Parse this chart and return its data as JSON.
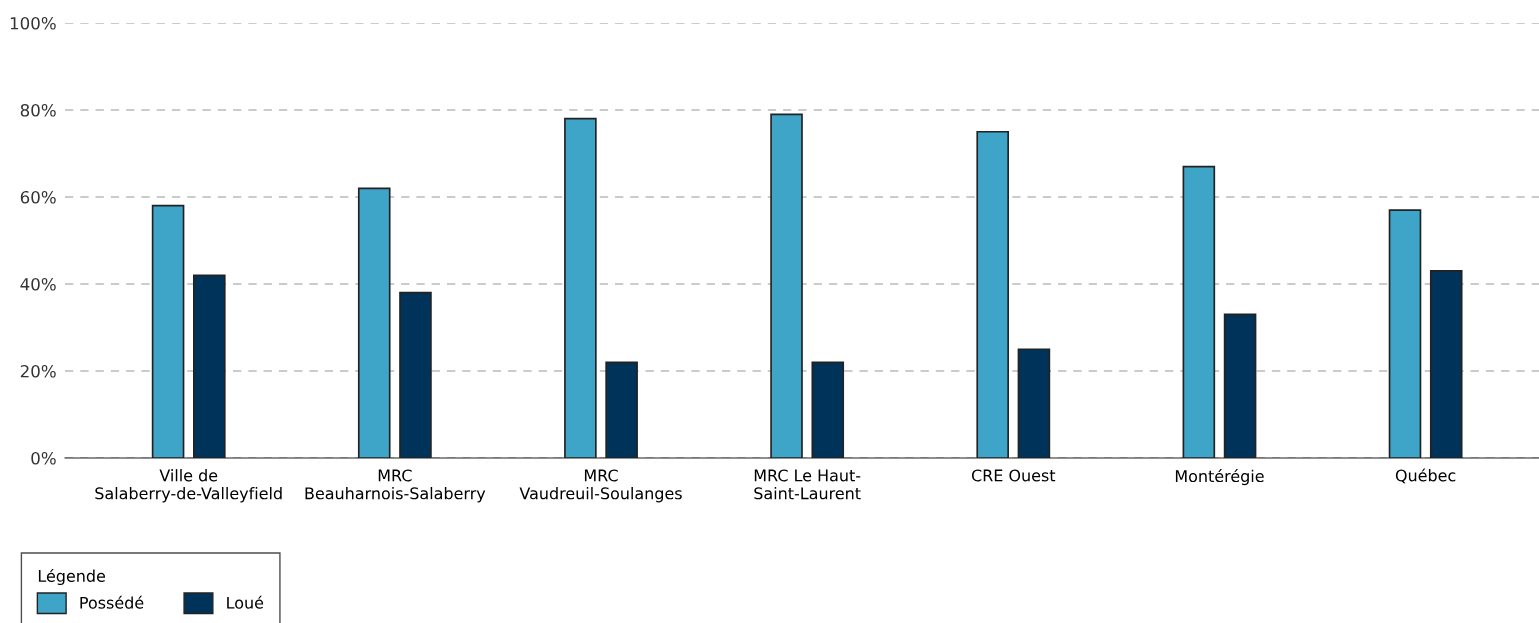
{
  "chart_data": {
    "type": "bar",
    "categories": [
      "Ville de\nSalaberry-de-Valleyfield",
      "MRC\nBeauharnois-Salaberry",
      "MRC\nVaudreuil-Soulanges",
      "MRC Le Haut-\nSaint-Laurent",
      "CRE Ouest",
      "Montérégie",
      "Québec"
    ],
    "series": [
      {
        "name": "Possédé",
        "color": "#3fa5c8",
        "values": [
          58,
          62,
          78,
          79,
          75,
          67,
          57
        ]
      },
      {
        "name": "Loué",
        "color": "#00335a",
        "values": [
          42,
          38,
          22,
          22,
          25,
          33,
          43
        ]
      }
    ],
    "ylim": [
      0,
      100
    ],
    "yticks": [
      {
        "value": 0,
        "label": "0%"
      },
      {
        "value": 20,
        "label": "20%"
      },
      {
        "value": 40,
        "label": "40%"
      },
      {
        "value": 60,
        "label": "60%"
      },
      {
        "value": 80,
        "label": "80%"
      },
      {
        "value": 100,
        "label": "100%"
      }
    ],
    "grid": "y",
    "legend": "bottom left",
    "legend_title": "Légende"
  }
}
